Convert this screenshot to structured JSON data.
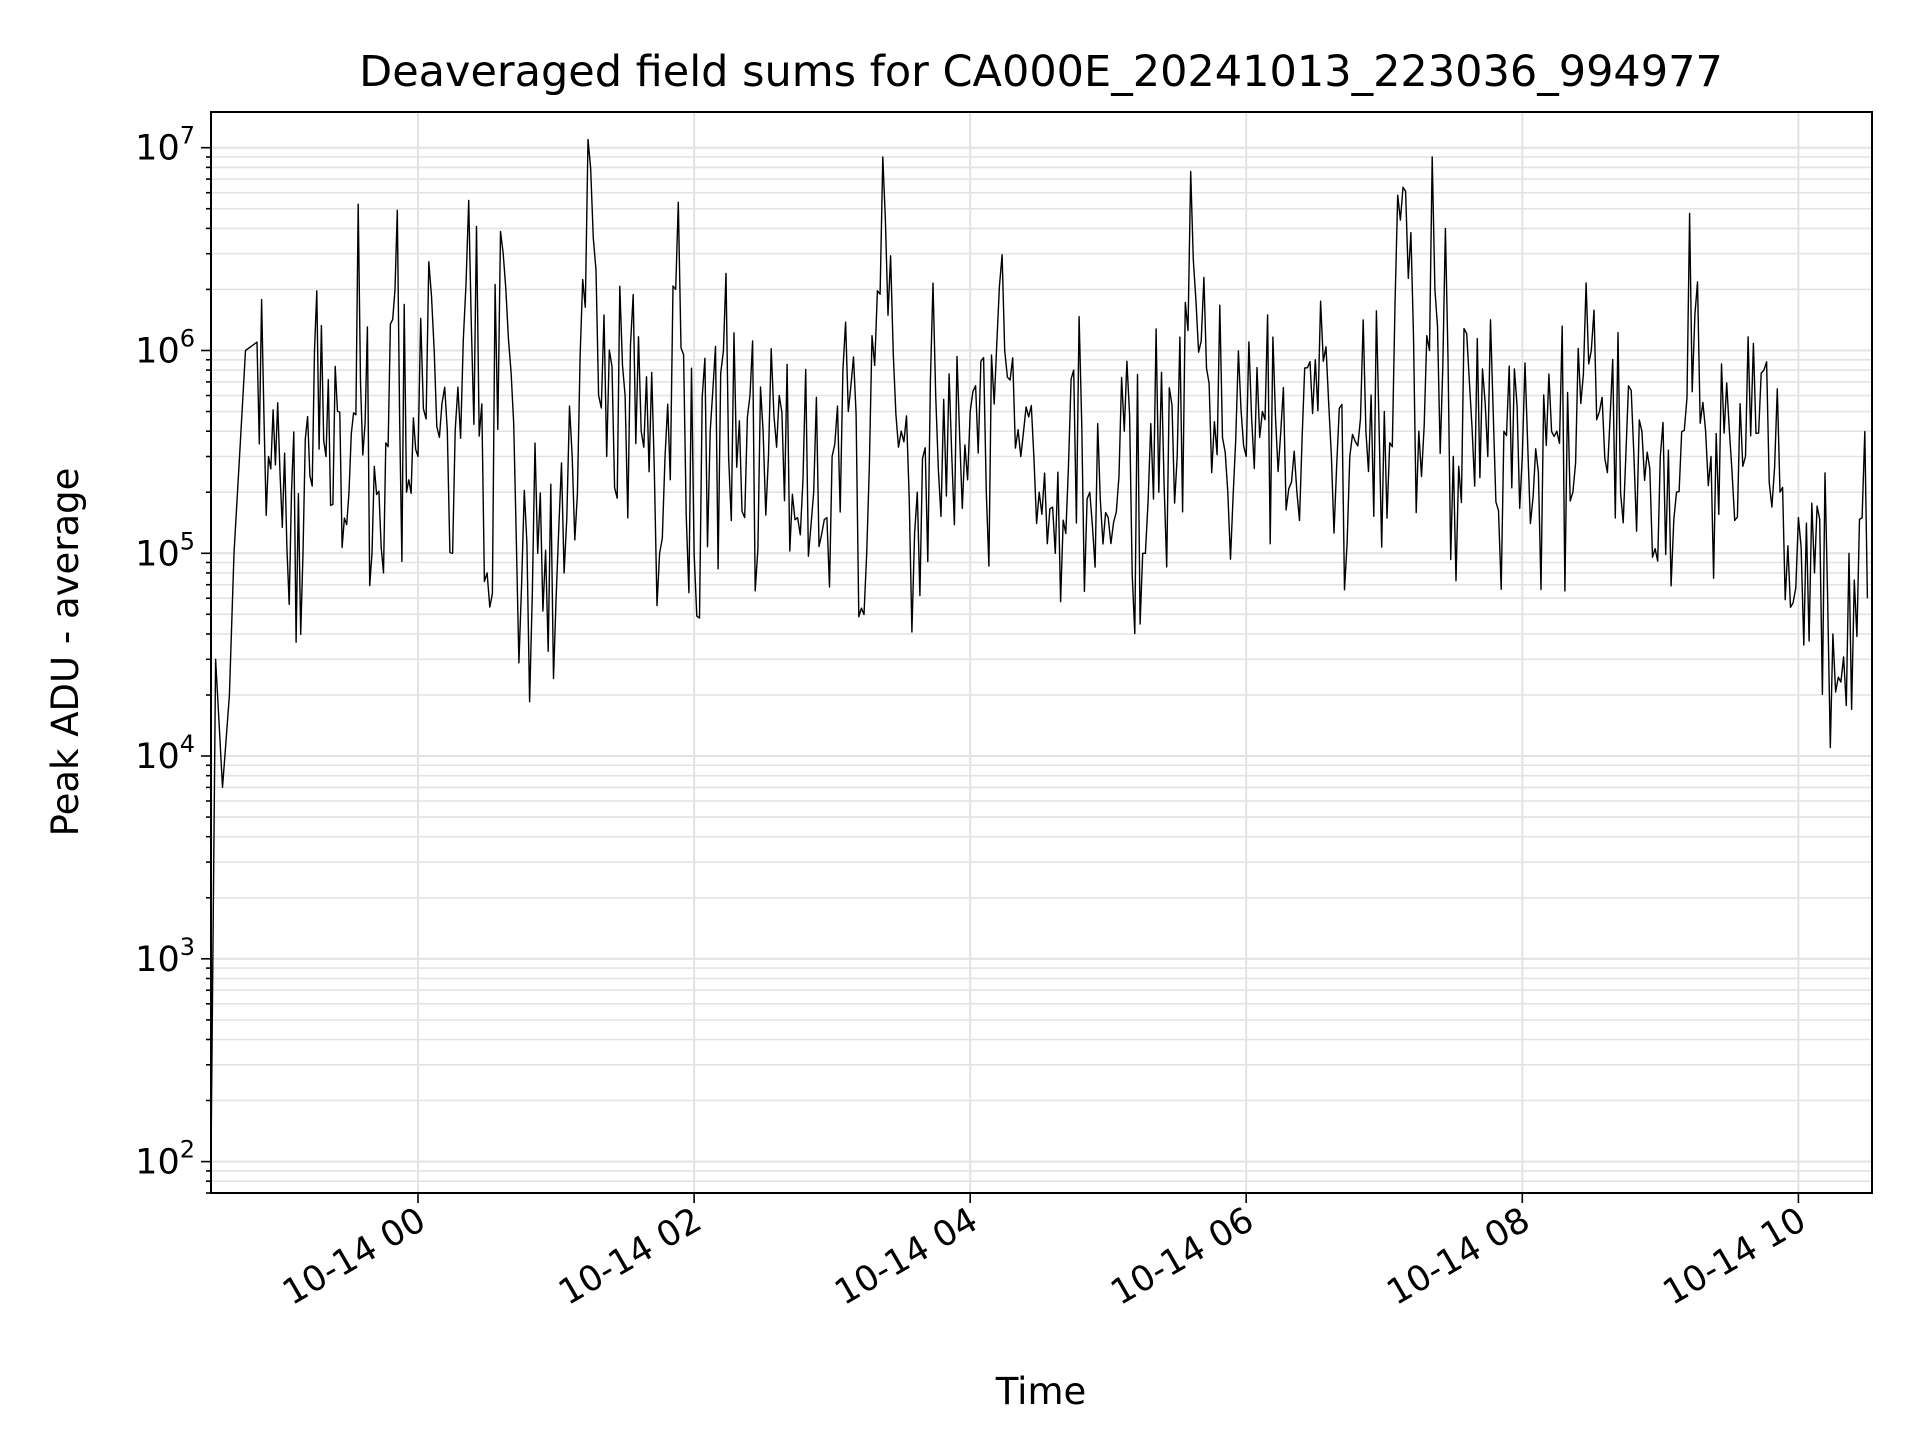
{
  "chart_data": {
    "type": "line",
    "title": "Deaveraged field sums for CA000E_20241013_223036_994977",
    "xlabel": "Time",
    "ylabel": "Peak ADU - average",
    "yscale": "log",
    "grid": true,
    "xlim": [
      "2024-10-13 22:30",
      "2024-10-14 10:32"
    ],
    "ylim": [
      70,
      15000000
    ],
    "x_tick_labels": [
      "10-14 00",
      "10-14 02",
      "10-14 04",
      "10-14 06",
      "10-14 08",
      "10-14 10"
    ],
    "x_ticks": [
      "2024-10-14 00:00",
      "2024-10-14 02:00",
      "2024-10-14 04:00",
      "2024-10-14 06:00",
      "2024-10-14 08:00",
      "2024-10-14 10:00"
    ],
    "y_ticks": [
      {
        "base": "10",
        "exp": "2",
        "value": 100
      },
      {
        "base": "10",
        "exp": "3",
        "value": 1000
      },
      {
        "base": "10",
        "exp": "4",
        "value": 10000
      },
      {
        "base": "10",
        "exp": "5",
        "value": 100000
      },
      {
        "base": "10",
        "exp": "6",
        "value": 1000000
      },
      {
        "base": "10",
        "exp": "7",
        "value": 10000000
      }
    ],
    "series": [
      {
        "line_color": "#000000",
        "x": [
          "2024-10-13 22:30",
          "2024-10-13 22:32",
          "2024-10-13 22:35",
          "2024-10-13 22:38",
          "2024-10-13 22:40",
          "2024-10-13 22:45",
          "2024-10-13 22:50",
          "2024-10-13 22:55",
          "2024-10-13 23:00",
          "2024-10-13 23:05",
          "2024-10-13 23:10",
          "2024-10-13 23:15",
          "2024-10-13 23:20",
          "2024-10-13 23:25",
          "2024-10-13 23:30",
          "2024-10-13 23:35",
          "2024-10-13 23:40",
          "2024-10-13 23:45",
          "2024-10-13 23:50",
          "2024-10-13 23:55",
          "2024-10-14 00:00",
          "2024-10-14 00:07",
          "2024-10-14 00:15",
          "2024-10-14 00:22",
          "2024-10-14 00:30",
          "2024-10-14 00:37",
          "2024-10-14 00:45",
          "2024-10-14 00:52",
          "2024-10-14 01:00",
          "2024-10-14 01:07",
          "2024-10-14 01:15",
          "2024-10-14 01:22",
          "2024-10-14 01:30",
          "2024-10-14 01:37",
          "2024-10-14 01:45",
          "2024-10-14 01:52",
          "2024-10-14 02:00",
          "2024-10-14 02:07",
          "2024-10-14 02:15",
          "2024-10-14 02:22",
          "2024-10-14 02:30",
          "2024-10-14 02:37",
          "2024-10-14 02:45",
          "2024-10-14 02:52",
          "2024-10-14 03:00",
          "2024-10-14 03:07",
          "2024-10-14 03:15",
          "2024-10-14 03:22",
          "2024-10-14 03:30",
          "2024-10-14 03:37",
          "2024-10-14 03:45",
          "2024-10-14 03:52",
          "2024-10-14 04:00",
          "2024-10-14 04:07",
          "2024-10-14 04:15",
          "2024-10-14 04:22",
          "2024-10-14 04:30",
          "2024-10-14 04:37",
          "2024-10-14 04:45",
          "2024-10-14 04:52",
          "2024-10-14 05:00",
          "2024-10-14 05:07",
          "2024-10-14 05:15",
          "2024-10-14 05:22",
          "2024-10-14 05:30",
          "2024-10-14 05:37",
          "2024-10-14 05:45",
          "2024-10-14 05:52",
          "2024-10-14 06:00",
          "2024-10-14 06:07",
          "2024-10-14 06:15",
          "2024-10-14 06:22",
          "2024-10-14 06:30",
          "2024-10-14 06:37",
          "2024-10-14 06:45",
          "2024-10-14 06:52",
          "2024-10-14 07:00",
          "2024-10-14 07:07",
          "2024-10-14 07:15",
          "2024-10-14 07:22",
          "2024-10-14 07:30",
          "2024-10-14 07:37",
          "2024-10-14 07:45",
          "2024-10-14 07:52",
          "2024-10-14 08:00",
          "2024-10-14 08:07",
          "2024-10-14 08:15",
          "2024-10-14 08:22",
          "2024-10-14 08:30",
          "2024-10-14 08:37",
          "2024-10-14 08:45",
          "2024-10-14 08:52",
          "2024-10-14 09:00",
          "2024-10-14 09:07",
          "2024-10-14 09:15",
          "2024-10-14 09:22",
          "2024-10-14 09:30",
          "2024-10-14 09:37",
          "2024-10-14 09:45",
          "2024-10-14 09:52",
          "2024-10-14 10:00",
          "2024-10-14 10:07",
          "2024-10-14 10:15",
          "2024-10-14 10:22",
          "2024-10-14 10:30"
        ],
        "y": [
          100,
          30000,
          7000,
          20000,
          100000,
          1000000,
          1100000,
          300000,
          250000,
          200000,
          100000,
          1000000,
          300000,
          500000,
          200000,
          700000,
          100000,
          80000,
          2000000,
          200000,
          300000,
          1000000,
          100000,
          5500000,
          80000,
          3000000,
          70000,
          100000,
          60000,
          300000,
          8000000,
          300000,
          600000,
          400000,
          100000,
          2000000,
          100000,
          400000,
          300000,
          150000,
          400000,
          600000,
          150000,
          200000,
          300000,
          500000,
          100000,
          9000000,
          400000,
          200000,
          600000,
          300000,
          500000,
          200000,
          1000000,
          300000,
          200000,
          100000,
          800000,
          200000,
          150000,
          400000,
          100000,
          200000,
          300000,
          2800000,
          250000,
          200000,
          300000,
          500000,
          400000,
          200000,
          900000,
          300000,
          300000,
          400000,
          500000,
          4400000,
          400000,
          2000000,
          300000,
          700000,
          300000,
          400000,
          300000,
          250000,
          400000,
          200000,
          1000000,
          250000,
          300000,
          400000,
          300000,
          200000,
          1500000,
          300000,
          400000,
          300000,
          800000,
          200000,
          150000,
          80000,
          40000,
          100000,
          60000
        ]
      }
    ]
  }
}
